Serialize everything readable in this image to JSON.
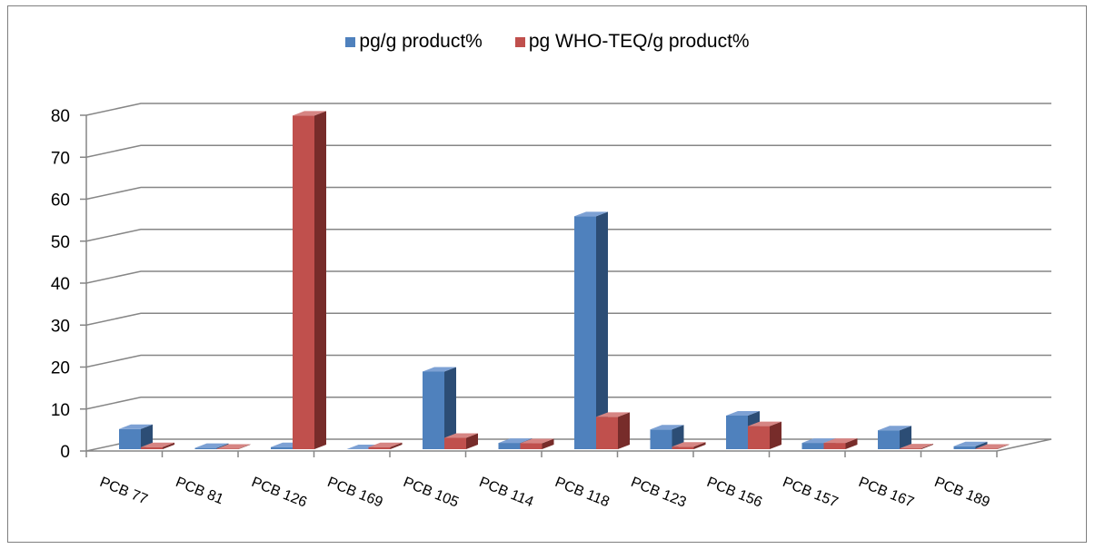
{
  "chart_data": {
    "type": "bar",
    "categories": [
      "PCB 77",
      "PCB 81",
      "PCB 126",
      "PCB 169",
      "PCB 105",
      "PCB 114",
      "PCB 118",
      "PCB 123",
      "PCB 156",
      "PCB 157",
      "PCB 167",
      "PCB 189"
    ],
    "series": [
      {
        "name": "pg/g product%",
        "values": [
          4.8,
          0.3,
          0.5,
          0.0,
          18.5,
          1.5,
          55.5,
          4.7,
          8.0,
          1.5,
          4.5,
          0.7
        ]
      },
      {
        "name": "pg WHO-TEQ/g product%",
        "values": [
          0.5,
          0.1,
          79.5,
          0.5,
          2.7,
          1.4,
          7.7,
          0.6,
          5.5,
          1.5,
          0.2,
          0.1
        ]
      }
    ],
    "title": "",
    "xlabel": "",
    "ylabel": "",
    "ylim": [
      0,
      80
    ],
    "yticks": [
      0,
      10,
      20,
      30,
      40,
      50,
      60,
      70,
      80
    ],
    "grid": true,
    "legend_position": "top",
    "colors": {
      "series1_front": "#4f81bd",
      "series1_side": "#2c4d75",
      "series1_top": "#7da1d4",
      "series2_front": "#c0504d",
      "series2_side": "#772c2a",
      "series2_top": "#d68583",
      "gridline": "#868686",
      "axis": "#868686"
    }
  }
}
